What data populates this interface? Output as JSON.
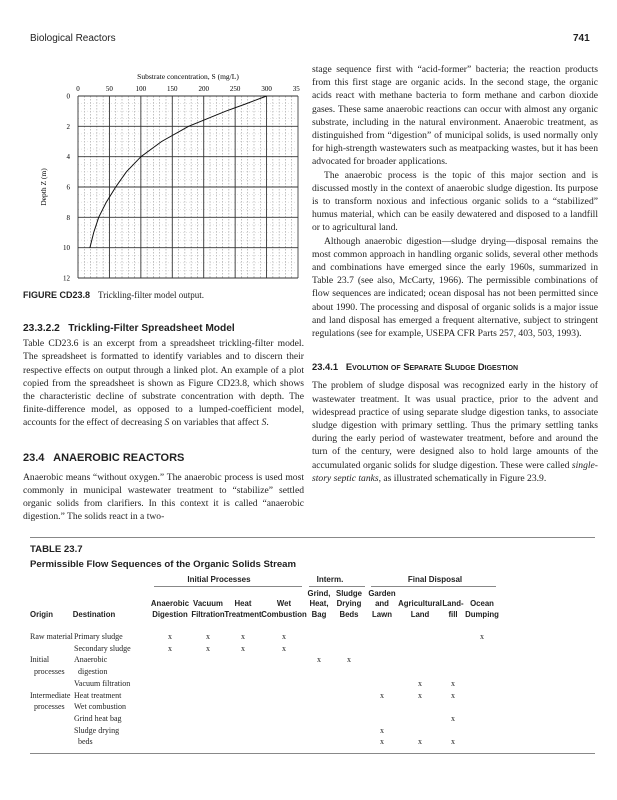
{
  "header": {
    "running_title": "Biological Reactors",
    "page_number": "741"
  },
  "figure": {
    "caption_label": "FIGURE CD23.8",
    "caption_text": "Trickling-filter model output."
  },
  "chart_data": {
    "type": "line",
    "xlabel": "Substrate concentration, S (mg/L)",
    "ylabel": "Depth Z (m)",
    "xlim": [
      0,
      350
    ],
    "ylim": [
      12,
      0
    ],
    "x_ticks": [
      0,
      50,
      100,
      150,
      200,
      250,
      300,
      350
    ],
    "y_ticks": [
      0,
      2,
      4,
      6,
      8,
      10,
      12
    ],
    "x_axis_position": "top",
    "y_inverted": true,
    "grid": true,
    "points": [
      [
        300,
        0
      ],
      [
        268,
        0.5
      ],
      [
        235,
        1
      ],
      [
        176,
        2
      ],
      [
        133,
        3
      ],
      [
        100,
        4
      ],
      [
        77,
        5
      ],
      [
        60,
        6
      ],
      [
        45,
        7
      ],
      [
        33,
        8
      ],
      [
        25,
        9
      ],
      [
        19,
        10
      ]
    ]
  },
  "left": {
    "h1": "23.3.2.2   Trickling-Filter Spreadsheet Model",
    "p1": "Table CD23.6 is an excerpt from a spreadsheet trickling-filter model. The spreadsheet is formatted to identify variables and to discern their respective effects on output through a linked plot. An example of a plot copied from the spreadsheet is shown as Figure CD23.8, which shows the characteristic decline of substrate concentration with depth. The finite-difference model, as opposed to a lumped-coefficient model, accounts for the effect of decreasing S on variables that affect S.",
    "h2": "23.4   ANAEROBIC REACTORS",
    "p2": "Anaerobic means “without oxygen.” The anaerobic process is used most commonly in municipal wastewater treatment to “stabilize” settled organic solids from clarifiers. In this context it is called “anaerobic digestion.” The solids react in a two-"
  },
  "right": {
    "p1": "stage sequence first with “acid-former” bacteria; the reaction products from this first stage are organic acids. In the second stage, the organic acids react with methane bacteria to form methane and carbon dioxide gases. These same anaerobic reactions can occur with almost any organic substrate, including in the natural environment. Anaerobic treatment, as distinguished from “digestion” of municipal solids, is used normally only for high-strength wastewaters such as meatpacking wastes, but it has been advocated for broader applications.",
    "p2": "The anaerobic process is the topic of this major section and is discussed mostly in the context of anaerobic sludge digestion. Its purpose is to transform noxious and infectious organic solids to a “stabilized” humus material, which can be easily dewatered and disposed to a landfill or to agricultural land.",
    "p3": "Although anaerobic digestion—sludge drying—disposal remains the most common approach in handling organic solids, several other methods and combinations have emerged since the early 1960s, summarized in Table 23.7 (see also, McCarty, 1966). The permissible combinations of flow sequences are indicated; ocean disposal has not been permitted since about 1990. The processing and disposal of organic solids is a major issue and land disposal has emerged a frequent alternative, subject to stringent regulations (see for example, USEPA CFR Parts 257, 403, 503, 1993).",
    "h1": "23.4.1   Evolution of Separate Sludge Digestion",
    "p4a": "The problem of sludge disposal was recognized early in the history of wastewater treatment. It was usual practice, prior to the advent and widespread practice of using separate sludge digestion tanks, to associate sludge digestion with primary settling. Thus the primary settling tanks during the early period of wastewater treatment, before and around the turn of the century, were designed also to hold large amounts of the accumulated organic solids for sludge digestion. These were called ",
    "p4_em": "single-story septic tanks",
    "p4b": ", as illustrated schematically in Figure 23.9."
  },
  "table": {
    "label": "TABLE 23.7",
    "title": "Permissible Flow Sequences of the Organic Solids Stream",
    "groups": [
      "Initial Processes",
      "Interm.",
      "Final Disposal"
    ],
    "columns": [
      "Origin",
      "Destination",
      "Anaerobic\nDigestion",
      "Vacuum\nFiltration",
      "Heat\nTreatment",
      "Wet\nCombustion",
      "Grind,\nHeat,\nBag",
      "Sludge\nDrying\nBeds",
      "Garden\nand\nLawn",
      "Agricultural\nLand",
      "Land-\nfill",
      "Ocean\nDumping"
    ],
    "mark": "x",
    "rows": [
      {
        "origin": "Raw material",
        "destination": "Primary sludge",
        "marks": [
          2,
          3,
          4,
          5,
          11
        ]
      },
      {
        "origin": "",
        "destination": "Secondary sludge",
        "marks": [
          2,
          3,
          4,
          5
        ]
      },
      {
        "origin": "Initial",
        "destination": "Anaerobic",
        "marks": [
          6,
          7
        ]
      },
      {
        "origin": "processes",
        "destination": "digestion",
        "marks": []
      },
      {
        "origin": "",
        "destination": "Vacuum filtration",
        "marks": [
          9,
          10
        ]
      },
      {
        "origin": "Intermediate",
        "destination": "Heat treatment",
        "marks": [
          8,
          9,
          10
        ]
      },
      {
        "origin": "processes",
        "destination": "Wet combustion",
        "marks": []
      },
      {
        "origin": "",
        "destination": "Grind heat bag",
        "marks": [
          10
        ]
      },
      {
        "origin": "",
        "destination": "Sludge drying",
        "marks": [
          8
        ]
      },
      {
        "origin": "",
        "destination": "beds",
        "marks": [
          8,
          9,
          10
        ]
      }
    ]
  }
}
